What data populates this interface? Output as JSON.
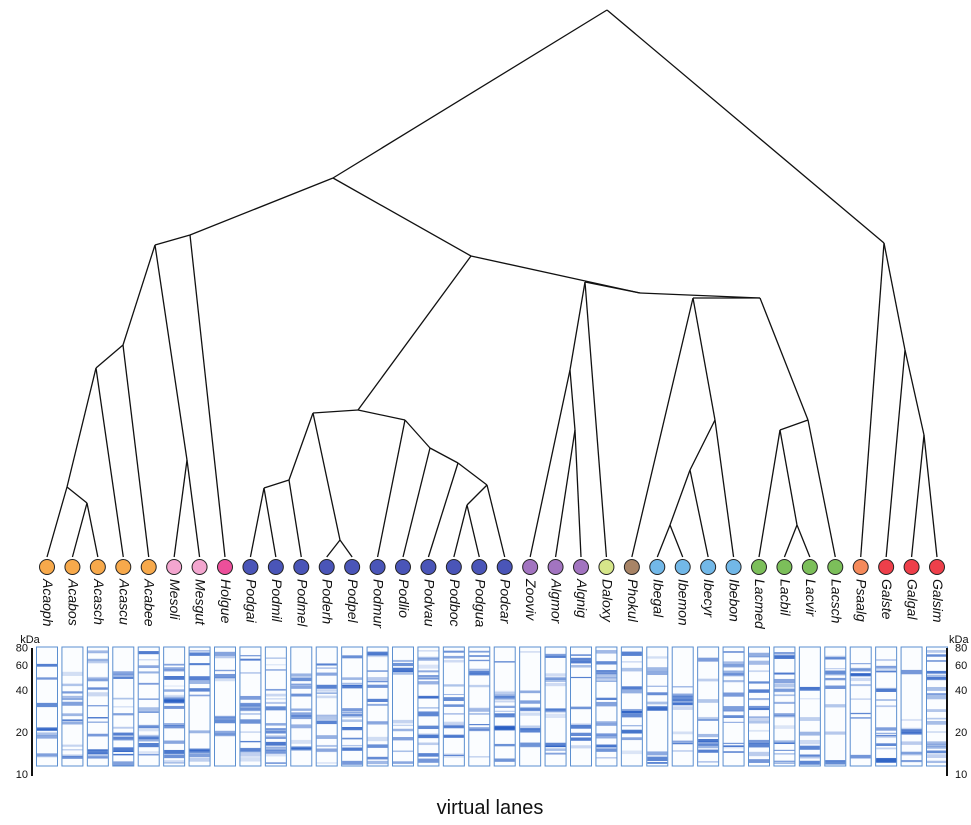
{
  "leaves": [
    {
      "label": "Acaoph",
      "color": "#f7a94b"
    },
    {
      "label": "Acabos",
      "color": "#f7a94b"
    },
    {
      "label": "Acasch",
      "color": "#f7a94b"
    },
    {
      "label": "Acascu",
      "color": "#f7a94b"
    },
    {
      "label": "Acabee",
      "color": "#f7a94b"
    },
    {
      "label": "Mesoli",
      "color": "#f3a6cf"
    },
    {
      "label": "Mesgut",
      "color": "#f3a6cf"
    },
    {
      "label": "Holgue",
      "color": "#ec4f9a"
    },
    {
      "label": "Podgai",
      "color": "#4a55b8"
    },
    {
      "label": "Podmil",
      "color": "#4a55b8"
    },
    {
      "label": "Podmel",
      "color": "#4a55b8"
    },
    {
      "label": "Poderh",
      "color": "#4a55b8"
    },
    {
      "label": "Podpel",
      "color": "#4a55b8"
    },
    {
      "label": "Podmur",
      "color": "#4a55b8"
    },
    {
      "label": "Podlio",
      "color": "#4a55b8"
    },
    {
      "label": "Podvau",
      "color": "#4a55b8"
    },
    {
      "label": "Podboc",
      "color": "#4a55b8"
    },
    {
      "label": "Podgua",
      "color": "#4a55b8"
    },
    {
      "label": "Podcar",
      "color": "#4a55b8"
    },
    {
      "label": "Zooviv",
      "color": "#a274c0"
    },
    {
      "label": "Algmor",
      "color": "#a274c0"
    },
    {
      "label": "Algnig",
      "color": "#a274c0"
    },
    {
      "label": "Daloxy",
      "color": "#d6e68a"
    },
    {
      "label": "Phokul",
      "color": "#a88466"
    },
    {
      "label": "Ibegal",
      "color": "#72b8e8"
    },
    {
      "label": "Ibemon",
      "color": "#72b8e8"
    },
    {
      "label": "Ibecyr",
      "color": "#72b8e8"
    },
    {
      "label": "Ibebon",
      "color": "#72b8e8"
    },
    {
      "label": "Lacmed",
      "color": "#7cbf5a"
    },
    {
      "label": "Lacbil",
      "color": "#7cbf5a"
    },
    {
      "label": "Lacvir",
      "color": "#7cbf5a"
    },
    {
      "label": "Lacsch",
      "color": "#7cbf5a"
    },
    {
      "label": "Psaalg",
      "color": "#f58a5b"
    },
    {
      "label": "Galste",
      "color": "#ee3f4a"
    },
    {
      "label": "Galgal",
      "color": "#ee3f4a"
    },
    {
      "label": "Galsim",
      "color": "#ee3f4a"
    }
  ],
  "axis": {
    "unit": "kDa",
    "ticks": [
      80,
      60,
      40,
      20,
      10
    ]
  },
  "caption": "virtual lanes"
}
